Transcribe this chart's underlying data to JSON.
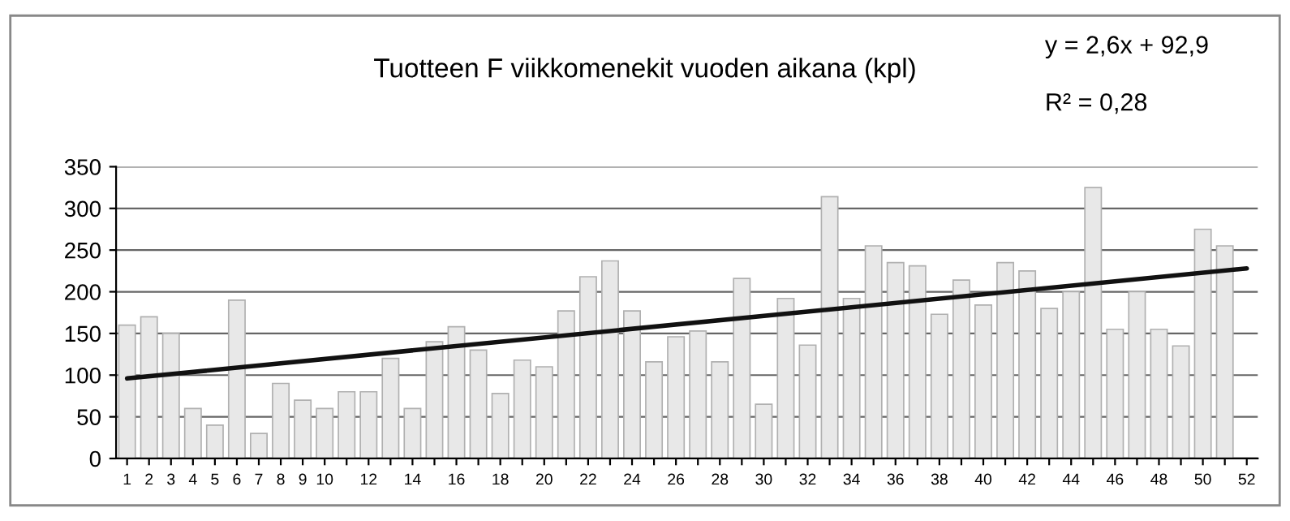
{
  "chart_data": {
    "type": "bar",
    "title": "Tuotteen F viikkomenekit vuoden aikana (kpl)",
    "x": [
      1,
      2,
      3,
      4,
      5,
      6,
      7,
      8,
      9,
      10,
      11,
      12,
      13,
      14,
      15,
      16,
      17,
      18,
      19,
      20,
      21,
      22,
      23,
      24,
      25,
      26,
      27,
      28,
      29,
      30,
      31,
      32,
      33,
      34,
      35,
      36,
      37,
      38,
      39,
      40,
      41,
      42,
      43,
      44,
      45,
      46,
      47,
      48,
      49,
      50,
      51
    ],
    "series": [
      {
        "color": "#e8e8e8",
        "values": [
          160,
          170,
          150,
          60,
          40,
          190,
          30,
          90,
          70,
          60,
          80,
          80,
          120,
          60,
          140,
          158,
          130,
          78,
          118,
          110,
          177,
          218,
          237,
          177,
          116,
          146,
          153,
          116,
          216,
          65,
          192,
          136,
          314,
          192,
          255,
          235,
          231,
          173,
          214,
          184,
          235,
          225,
          180,
          200,
          325,
          155,
          200,
          155,
          135,
          275,
          255
        ]
      },
      {
        "type": "line",
        "color": "#111111",
        "x": [
          1,
          52
        ],
        "values": [
          96,
          228
        ]
      }
    ],
    "xlim": [
      0.5,
      52.5
    ],
    "xticks": [
      1,
      2,
      3,
      4,
      5,
      6,
      7,
      8,
      9,
      10,
      {
        "value": 11,
        "label": null
      },
      12,
      {
        "value": 13,
        "label": null
      },
      14,
      {
        "value": 15,
        "label": null
      },
      16,
      {
        "value": 17,
        "label": null
      },
      18,
      {
        "value": 19,
        "label": null
      },
      20,
      {
        "value": 21,
        "label": null
      },
      22,
      {
        "value": 23,
        "label": null
      },
      24,
      {
        "value": 25,
        "label": null
      },
      26,
      {
        "value": 27,
        "label": null
      },
      28,
      {
        "value": 29,
        "label": null
      },
      30,
      {
        "value": 31,
        "label": null
      },
      32,
      {
        "value": 33,
        "label": null
      },
      34,
      {
        "value": 35,
        "label": null
      },
      36,
      {
        "value": 37,
        "label": null
      },
      38,
      {
        "value": 39,
        "label": null
      },
      40,
      {
        "value": 41,
        "label": null
      },
      42,
      {
        "value": 43,
        "label": null
      },
      44,
      {
        "value": 45,
        "label": null
      },
      46,
      {
        "value": 47,
        "label": null
      },
      48,
      {
        "value": 49,
        "label": null
      },
      50,
      {
        "value": 51,
        "label": null
      },
      52
    ],
    "ylim": [
      0,
      350
    ],
    "yticks": [
      0,
      50,
      100,
      150,
      200,
      250,
      300,
      350
    ],
    "grid": "y",
    "legend": false,
    "annotations": [
      "y = 2,6x + 92,9",
      "R² = 0,28"
    ]
  }
}
